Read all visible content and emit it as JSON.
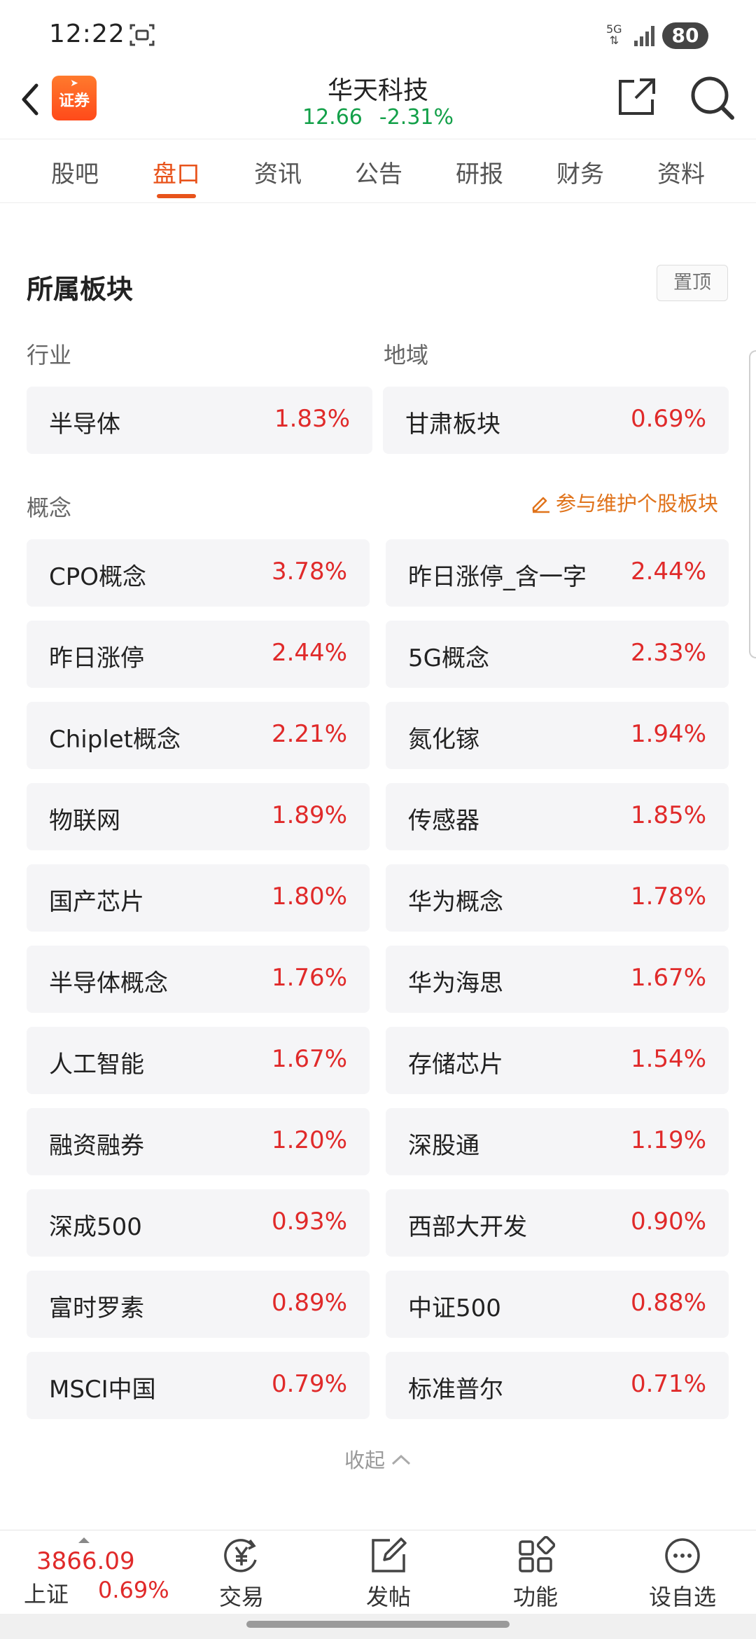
{
  "status_bar": {
    "time": "12:22",
    "network": "5G",
    "battery": "80"
  },
  "header": {
    "logo_text": "证券",
    "stock_name": "华天科技",
    "price": "12.66",
    "change_pct": "-2.31%"
  },
  "tabs": [
    {
      "label": "股吧"
    },
    {
      "label": "盘口"
    },
    {
      "label": "资讯"
    },
    {
      "label": "公告"
    },
    {
      "label": "研报"
    },
    {
      "label": "财务"
    },
    {
      "label": "资料"
    }
  ],
  "active_tab": "盘口",
  "section": {
    "title": "所属板块",
    "pin_label": "置顶",
    "industry_label": "行业",
    "region_label": "地域",
    "concept_label": "概念",
    "maintain_link": "参与维护个股板块",
    "industry": {
      "name": "半导体",
      "pct": "1.83%"
    },
    "region": {
      "name": "甘肃板块",
      "pct": "0.69%"
    },
    "concepts": [
      {
        "name": "CPO概念",
        "pct": "3.78%"
      },
      {
        "name": "昨日涨停_含一字",
        "pct": "2.44%"
      },
      {
        "name": "昨日涨停",
        "pct": "2.44%"
      },
      {
        "name": "5G概念",
        "pct": "2.33%"
      },
      {
        "name": "Chiplet概念",
        "pct": "2.21%"
      },
      {
        "name": "氮化镓",
        "pct": "1.94%"
      },
      {
        "name": "物联网",
        "pct": "1.89%"
      },
      {
        "name": "传感器",
        "pct": "1.85%"
      },
      {
        "name": "国产芯片",
        "pct": "1.80%"
      },
      {
        "name": "华为概念",
        "pct": "1.78%"
      },
      {
        "name": "半导体概念",
        "pct": "1.76%"
      },
      {
        "name": "华为海思",
        "pct": "1.67%"
      },
      {
        "name": "人工智能",
        "pct": "1.67%"
      },
      {
        "name": "存储芯片",
        "pct": "1.54%"
      },
      {
        "name": "融资融券",
        "pct": "1.20%"
      },
      {
        "name": "深股通",
        "pct": "1.19%"
      },
      {
        "name": "深成500",
        "pct": "0.93%"
      },
      {
        "name": "西部大开发",
        "pct": "0.90%"
      },
      {
        "name": "富时罗素",
        "pct": "0.89%"
      },
      {
        "name": "中证500",
        "pct": "0.88%"
      },
      {
        "name": "MSCI中国",
        "pct": "0.79%"
      },
      {
        "name": "标准普尔",
        "pct": "0.71%"
      }
    ],
    "collapse_label": "收起"
  },
  "bottom_bar": {
    "index_value": "3866.09",
    "index_name": "上证",
    "index_pct": "0.69%",
    "nav": [
      {
        "label": "交易",
        "icon": "trade-yen-icon"
      },
      {
        "label": "发帖",
        "icon": "post-edit-icon"
      },
      {
        "label": "功能",
        "icon": "functions-grid-icon"
      },
      {
        "label": "设自选",
        "icon": "more-dots-icon"
      }
    ]
  },
  "colors": {
    "accent": "#e8531b",
    "up": "#e02a2a",
    "down": "#13a049",
    "link": "#e0731b"
  }
}
